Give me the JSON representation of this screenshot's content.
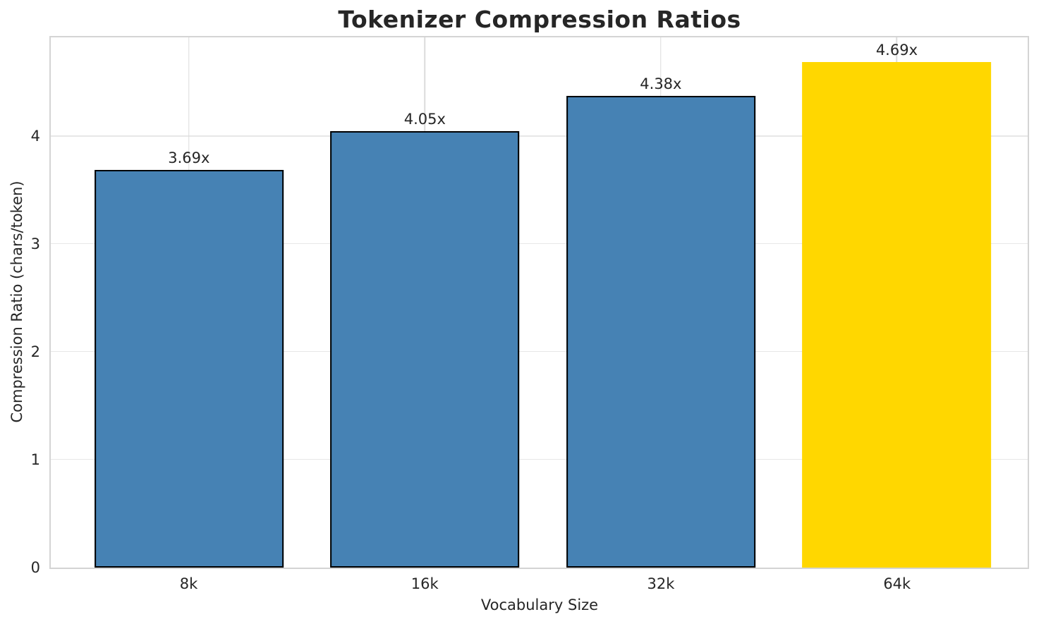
{
  "chart_data": {
    "type": "bar",
    "title": "Tokenizer Compression Ratios",
    "xlabel": "Vocabulary Size",
    "ylabel": "Compression Ratio (chars/token)",
    "categories": [
      "8k",
      "16k",
      "32k",
      "64k"
    ],
    "values": [
      3.69,
      4.05,
      4.38,
      4.69
    ],
    "bar_labels": [
      "3.69x",
      "4.05x",
      "4.38x",
      "4.69x"
    ],
    "bar_colors": [
      "#4682b4",
      "#4682b4",
      "#4682b4",
      "#ffd700"
    ],
    "bar_edge_colors": [
      "#000000",
      "#000000",
      "#000000",
      "none"
    ],
    "yticks": [
      "0",
      "1",
      "2",
      "3",
      "4"
    ],
    "ytick_values": [
      0,
      1,
      2,
      3,
      4
    ],
    "ylim": [
      0,
      4.92
    ],
    "grid": true,
    "legend": "none",
    "colors": {
      "series": "#4682b4",
      "highlight": "#ffd700",
      "text": "#262626",
      "grid": "#e7e7e7",
      "spine": "#d4d4d4",
      "bar_edge": "#000000"
    }
  }
}
